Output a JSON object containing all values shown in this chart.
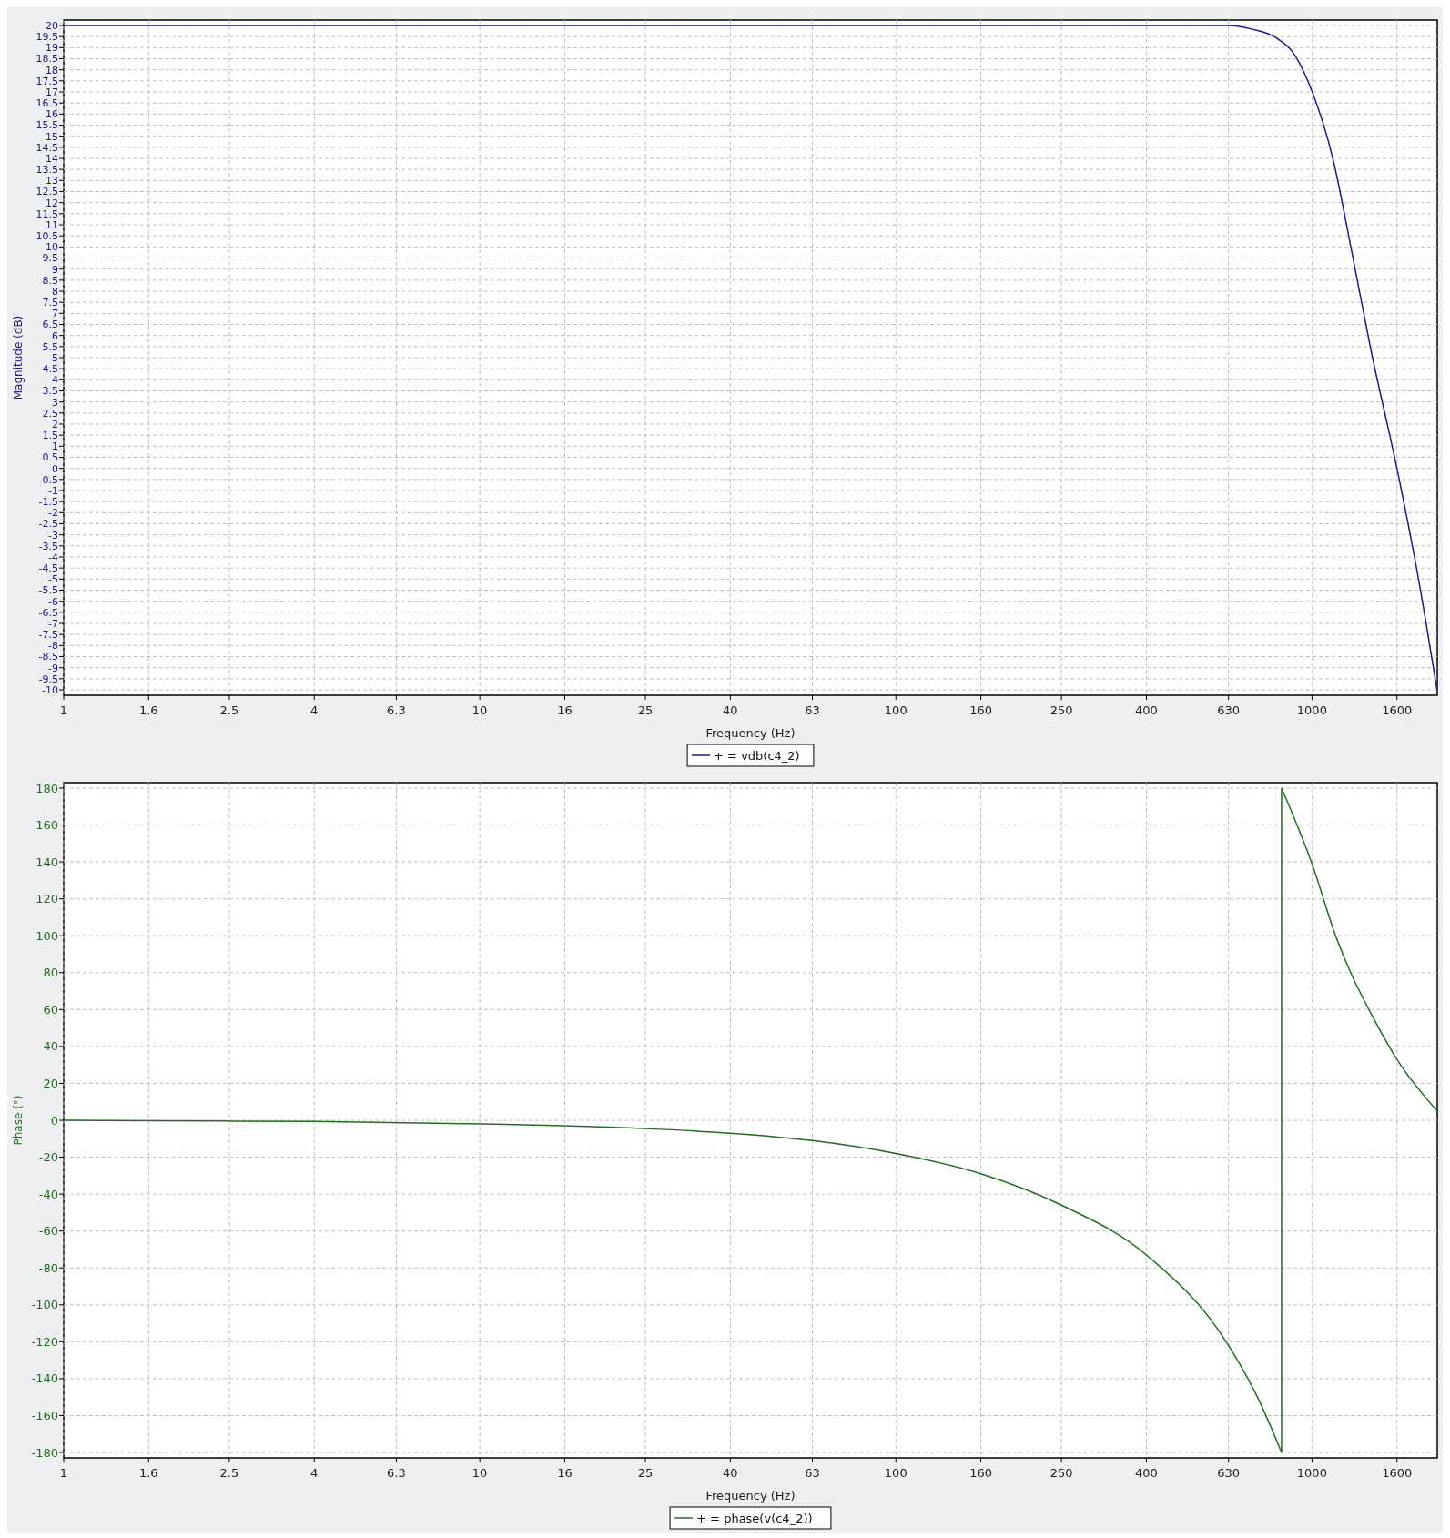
{
  "chart_data": [
    {
      "type": "line",
      "xlabel": "Frequency (Hz)",
      "ylabel": "Magnitude (dB)",
      "log": "x",
      "grid": true,
      "legend": "bottom",
      "xlim": [
        1,
        2000
      ],
      "xticks": [
        1,
        1.6,
        2.5,
        4,
        6.3,
        10,
        16,
        25,
        40,
        63,
        100,
        160,
        250,
        400,
        630,
        1000,
        1600
      ],
      "ylim": [
        -10,
        20
      ],
      "yticks": [
        -10,
        -9.5,
        -9,
        -8.5,
        -8,
        -7.5,
        -7,
        -6.5,
        -6,
        -5.5,
        -5,
        -4.5,
        -4,
        -3.5,
        -3,
        -2.5,
        -2,
        -1.5,
        -1,
        -0.5,
        0,
        0.5,
        1,
        1.5,
        2,
        2.5,
        3,
        3.5,
        4,
        4.5,
        5,
        5.5,
        6,
        6.5,
        7,
        7.5,
        8,
        8.5,
        9,
        9.5,
        10,
        10.5,
        11,
        11.5,
        12,
        12.5,
        13,
        13.5,
        14,
        14.5,
        15,
        15.5,
        16,
        16.5,
        17,
        17.5,
        18,
        18.5,
        19,
        19.5,
        20
      ],
      "series": [
        {
          "name": "+ = vdb(c4_2)",
          "color": "#1a1a8c",
          "x": [
            1,
            10,
            100,
            400,
            630,
            716,
            819,
            910,
            1000,
            1122,
            1250,
            1387,
            1600,
            1807,
            1997
          ],
          "values": [
            20,
            20,
            20,
            20,
            20,
            19.84,
            19.45,
            18.65,
            17.03,
            14.0,
            9.65,
            5.3,
            0,
            -5.1,
            -10
          ]
        }
      ]
    },
    {
      "type": "line",
      "xlabel": "Frequency (Hz)",
      "ylabel": "Phase (°)",
      "log": "x",
      "grid": true,
      "legend": "bottom",
      "xlim": [
        1,
        2000
      ],
      "xticks": [
        1,
        1.6,
        2.5,
        4,
        6.3,
        10,
        16,
        25,
        40,
        63,
        100,
        160,
        250,
        400,
        630,
        1000,
        1600
      ],
      "ylim": [
        -180,
        180
      ],
      "yticks": [
        -180,
        -160,
        -140,
        -120,
        -100,
        -80,
        -60,
        -40,
        -20,
        0,
        20,
        40,
        60,
        80,
        100,
        120,
        140,
        160,
        180
      ],
      "series": [
        {
          "name": "+ = phase(v(c4_2))",
          "color": "#1f6f1f",
          "x": [
            1,
            1.6,
            4,
            10,
            16,
            25,
            40,
            63,
            100,
            160,
            250,
            400,
            630,
            743,
            845,
            845,
            1000,
            1148,
            1244,
            1385,
            1600,
            2000
          ],
          "values": [
            0,
            -0.3,
            -0.6,
            -2,
            -3,
            -4.5,
            -7,
            -11,
            -18,
            -29,
            -46,
            -73,
            -122,
            -151,
            -180,
            180,
            139,
            98,
            79,
            58,
            33,
            5
          ]
        }
      ]
    }
  ]
}
